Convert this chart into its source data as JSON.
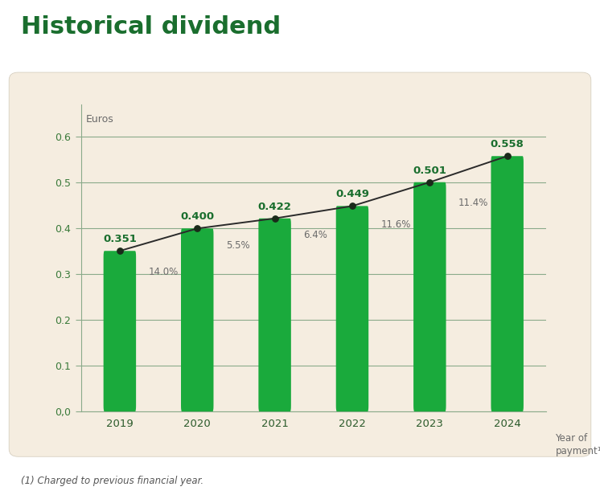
{
  "title": "Historical dividend",
  "title_color": "#1a6e2e",
  "title_fontsize": 22,
  "title_fontweight": "bold",
  "background_outer": "#ffffff",
  "background_inner": "#f5ede0",
  "years": [
    "2019",
    "2020",
    "2021",
    "2022",
    "2023",
    "2024"
  ],
  "values": [
    0.351,
    0.4,
    0.422,
    0.449,
    0.501,
    0.558
  ],
  "growth_labels": [
    "14.0%",
    "5.5%",
    "6.4%",
    "11.6%",
    "11.4%"
  ],
  "bar_color": "#1aaa3c",
  "line_color": "#2a2a2a",
  "dot_color": "#1a2a1a",
  "ylabel": "Euros",
  "xlabel": "Year of\npayment¹",
  "yticks": [
    0.0,
    0.1,
    0.2,
    0.3,
    0.4,
    0.5,
    0.6
  ],
  "ytick_labels": [
    "0,0",
    "0.1",
    "0.2",
    "0.3",
    "0.4",
    "0.5",
    "0.6"
  ],
  "ylim": [
    0,
    0.67
  ],
  "footnote": "(1) Charged to previous financial year.",
  "value_label_color": "#1a6e2e",
  "growth_label_color": "#6a6a6a",
  "axis_color": "#8aaa8a",
  "tick_color": "#3a7a3a",
  "year_label_color": "#2a5a2a"
}
